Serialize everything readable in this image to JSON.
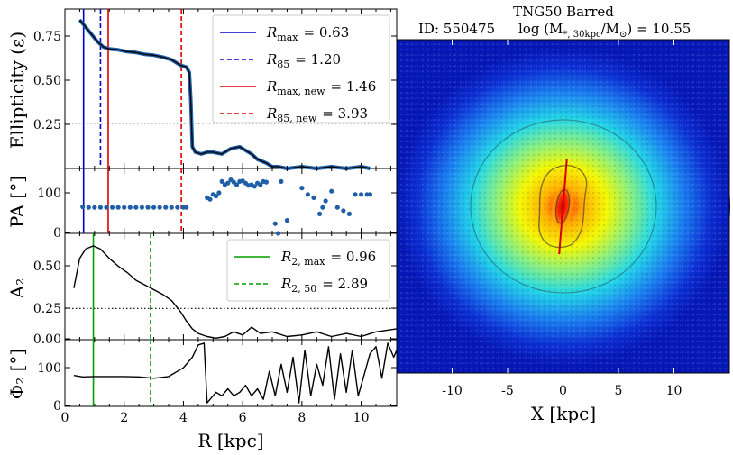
{
  "chart_data": [
    {
      "name": "ellipticity",
      "type": "line",
      "ylabel": "Ellipticity (ε)",
      "yticks": [
        "0.25",
        "0.50",
        "0.75"
      ],
      "ylim": [
        0,
        0.88
      ],
      "xlim": [
        0,
        11.2
      ],
      "reference_line": {
        "y": 0.25,
        "style": "dotted"
      },
      "series": [
        {
          "name": "ellipticity",
          "x": [
            0.5,
            0.7,
            0.9,
            1.1,
            1.3,
            1.5,
            1.8,
            2.1,
            2.4,
            2.7,
            3.0,
            3.3,
            3.6,
            3.9,
            4.1,
            4.2,
            4.25,
            4.3,
            4.4,
            4.6,
            4.8,
            5.0,
            5.3,
            5.6,
            5.9,
            6.1,
            6.3,
            6.5,
            6.8,
            7.0,
            7.2,
            7.5,
            8.0,
            8.5,
            9.0,
            9.5,
            10.0,
            10.3
          ],
          "y": [
            0.82,
            0.78,
            0.74,
            0.7,
            0.67,
            0.66,
            0.655,
            0.645,
            0.64,
            0.63,
            0.625,
            0.615,
            0.6,
            0.57,
            0.56,
            0.53,
            0.38,
            0.12,
            0.09,
            0.08,
            0.09,
            0.09,
            0.08,
            0.11,
            0.12,
            0.1,
            0.08,
            0.05,
            0.03,
            0.01,
            0.01,
            0.0,
            0.01,
            0.0,
            0.01,
            0.0,
            0.01,
            0.0
          ]
        }
      ],
      "vlines": [
        {
          "x": 0.63,
          "color": "#0000cc",
          "style": "solid"
        },
        {
          "x": 1.2,
          "color": "#0000cc",
          "style": "dashed"
        },
        {
          "x": 1.46,
          "color": "#e00000",
          "style": "solid"
        },
        {
          "x": 3.93,
          "color": "#e00000",
          "style": "dashed"
        }
      ],
      "legend": [
        {
          "label": "R_max = 0.63",
          "base": "R",
          "sub": "max",
          "value": "= 0.63",
          "color": "#0000cc",
          "style": "solid"
        },
        {
          "label": "R_85 = 1.20",
          "base": "R",
          "sub": "85",
          "value": "= 1.20",
          "color": "#0000cc",
          "style": "dashed"
        },
        {
          "label": "R_max,new = 1.46",
          "base": "R",
          "sub": "max, new",
          "value": "= 1.46",
          "color": "#e00000",
          "style": "solid"
        },
        {
          "label": "R_85,new = 3.93",
          "base": "R",
          "sub": "85, new",
          "value": "= 3.93",
          "color": "#e00000",
          "style": "dashed"
        }
      ]
    },
    {
      "name": "position-angle",
      "type": "scatter",
      "ylabel": "PA [°]",
      "yticks": [
        "0",
        "100"
      ],
      "ylim": [
        0,
        200
      ],
      "xlim": [
        0,
        11.2
      ],
      "series": [
        {
          "name": "PA",
          "x": [
            0.6,
            0.8,
            1.0,
            1.2,
            1.4,
            1.6,
            1.8,
            2.0,
            2.2,
            2.4,
            2.6,
            2.8,
            3.0,
            3.2,
            3.4,
            3.6,
            3.8,
            4.0,
            4.1,
            4.8,
            4.9,
            5.0,
            5.1,
            5.2,
            5.3,
            5.4,
            5.5,
            5.6,
            5.7,
            5.8,
            5.9,
            6.0,
            6.1,
            6.2,
            6.3,
            6.4,
            6.5,
            6.6,
            6.7,
            6.8,
            7.1,
            7.2,
            7.3,
            7.5,
            8.0,
            8.2,
            8.4,
            8.6,
            8.7,
            8.8,
            9.0,
            9.2,
            9.4,
            9.6,
            9.8,
            10.0,
            10.2,
            10.3
          ],
          "y": [
            82,
            80,
            80,
            80,
            80,
            80,
            80,
            80,
            80,
            80,
            80,
            80,
            80,
            80,
            80,
            80,
            80,
            80,
            80,
            110,
            105,
            120,
            115,
            125,
            160,
            150,
            155,
            165,
            158,
            150,
            160,
            162,
            155,
            148,
            150,
            145,
            155,
            150,
            160,
            158,
            30,
            0,
            160,
            40,
            140,
            120,
            110,
            60,
            80,
            100,
            130,
            80,
            70,
            60,
            120,
            120,
            120,
            120
          ]
        }
      ],
      "vlines": [
        {
          "x": 0.63,
          "color": "#0000cc",
          "style": "solid"
        },
        {
          "x": 1.46,
          "color": "#e00000",
          "style": "solid"
        },
        {
          "x": 3.93,
          "color": "#e00000",
          "style": "dashed"
        }
      ]
    },
    {
      "name": "bar-amplitude",
      "type": "line",
      "ylabel": "A₂",
      "yticks": [
        "0.00",
        "0.25",
        "0.50"
      ],
      "ylim": [
        0,
        0.68
      ],
      "xlim": [
        0,
        11.2
      ],
      "reference_line": {
        "y": 0.2,
        "style": "dotted"
      },
      "series": [
        {
          "name": "A2",
          "x": [
            0.3,
            0.5,
            0.7,
            0.96,
            1.2,
            1.5,
            1.8,
            2.1,
            2.4,
            2.7,
            3.0,
            3.3,
            3.6,
            3.9,
            4.1,
            4.3,
            4.5,
            4.8,
            5.1,
            5.4,
            5.7,
            6.0,
            6.3,
            6.6,
            7.0,
            7.5,
            8.0,
            8.5,
            9.0,
            9.5,
            10.0,
            10.5,
            11.2
          ],
          "y": [
            0.33,
            0.52,
            0.58,
            0.6,
            0.58,
            0.52,
            0.47,
            0.43,
            0.38,
            0.35,
            0.32,
            0.29,
            0.25,
            0.18,
            0.12,
            0.07,
            0.04,
            0.02,
            0.01,
            0.02,
            0.05,
            0.03,
            0.08,
            0.04,
            0.05,
            0.02,
            0.03,
            0.05,
            0.02,
            0.04,
            0.02,
            0.05,
            0.07
          ]
        }
      ],
      "vlines": [
        {
          "x": 0.96,
          "color": "#00a000",
          "style": "solid"
        },
        {
          "x": 2.89,
          "color": "#00a000",
          "style": "dashed"
        }
      ],
      "legend": [
        {
          "label": "R_2,max = 0.96",
          "base": "R",
          "sub": "2, max",
          "value": "= 0.96",
          "color": "#00a000",
          "style": "solid"
        },
        {
          "label": "R_2,50 = 2.89",
          "base": "R",
          "sub": "2, 50",
          "value": "= 2.89",
          "color": "#00a000",
          "style": "dashed"
        }
      ]
    },
    {
      "name": "bar-phase",
      "type": "line",
      "ylabel": "Φ₂ [°]",
      "yticks": [
        "0",
        "100"
      ],
      "ylim": [
        0,
        190
      ],
      "xlim": [
        0,
        11.2
      ],
      "xticks": [
        "0",
        "2",
        "4",
        "6",
        "8",
        "10"
      ],
      "xlabel": "R [kpc]",
      "series": [
        {
          "name": "Phi2",
          "x": [
            0.3,
            0.6,
            1.0,
            1.5,
            2.0,
            2.5,
            3.0,
            3.5,
            4.0,
            4.3,
            4.5,
            4.7,
            4.8,
            4.9,
            5.1,
            5.3,
            5.5,
            5.7,
            5.9,
            6.1,
            6.3,
            6.5,
            6.7,
            6.9,
            7.1,
            7.3,
            7.5,
            7.7,
            7.9,
            8.1,
            8.3,
            8.5,
            8.7,
            8.9,
            9.1,
            9.3,
            9.5,
            9.7,
            9.9,
            10.1,
            10.3,
            10.5,
            10.7,
            10.9,
            11.1,
            11.2
          ],
          "y": [
            88,
            84,
            85,
            85,
            85,
            84,
            80,
            85,
            110,
            140,
            175,
            180,
            10,
            20,
            40,
            30,
            50,
            30,
            40,
            60,
            30,
            50,
            20,
            100,
            30,
            120,
            40,
            140,
            10,
            160,
            30,
            120,
            60,
            170,
            20,
            150,
            40,
            160,
            30,
            90,
            150,
            170,
            80,
            180,
            140,
            160
          ]
        }
      ],
      "vlines": [
        {
          "x": 0.96,
          "color": "#00a000",
          "style": "solid"
        },
        {
          "x": 2.89,
          "color": "#00a000",
          "style": "dashed"
        }
      ]
    },
    {
      "name": "density-map",
      "type": "heatmap",
      "title_line1": "TNG50 Barred",
      "title_id": "ID: 550475",
      "title_mass_lhs": "log (M",
      "title_mass_sub": "*, 30kpc",
      "title_mass_mid": "/M",
      "title_mass_sun": "⊙",
      "title_mass_rhs": ") = 10.55",
      "xticks": [
        "-10",
        "-5",
        "0",
        "5",
        "10"
      ],
      "xlabel": "X [kpc]",
      "xlim": [
        -15,
        15
      ],
      "bar_major_axis": {
        "x1": 0.35,
        "y1": 4.3,
        "x2": -0.35,
        "y2": -4.3
      }
    }
  ]
}
